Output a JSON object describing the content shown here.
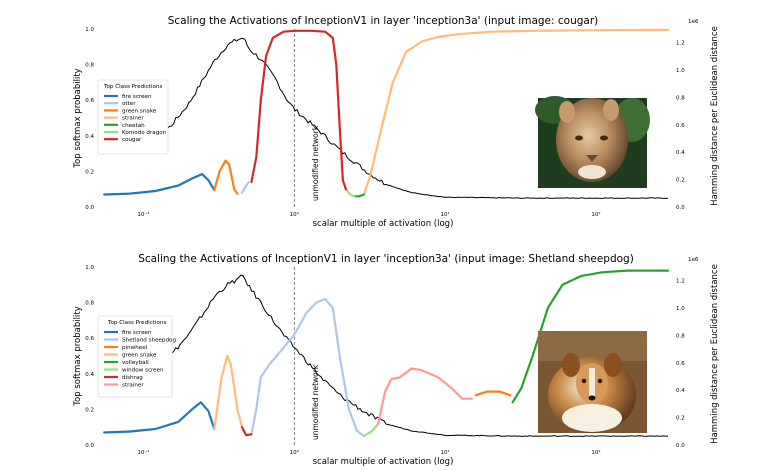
{
  "chart_data": [
    {
      "type": "line",
      "title": "Scaling the Activations of InceptionV1 in layer 'inception3a' (input image: cougar)",
      "xlabel": "scalar multiple of activation (log)",
      "ylabel": "Top softmax probability",
      "y2label": "Hamming distance per Euclidean distance",
      "y2_offset_label": "1e6",
      "x_scale": "log",
      "xlim": [
        0.05,
        300
      ],
      "ylim": [
        0,
        1.0
      ],
      "y2lim": [
        0,
        1.3
      ],
      "xticks": [
        {
          "v": 0.1,
          "label": "10⁻¹"
        },
        {
          "v": 1,
          "label": "10⁰"
        },
        {
          "v": 10,
          "label": "10¹"
        },
        {
          "v": 100,
          "label": "10²"
        }
      ],
      "yticks": [
        "0.0",
        "0.2",
        "0.4",
        "0.6",
        "0.8",
        "1.0"
      ],
      "y2ticks": [
        "0.0",
        "0.2",
        "0.4",
        "0.6",
        "0.8",
        "1.0",
        "1.2"
      ],
      "annotation": {
        "x": 1,
        "text": "unmodified network"
      },
      "legend": {
        "title": "Top Class Predictions",
        "placement": "center-left"
      },
      "image_label": "cougar",
      "series": [
        {
          "name": "fire screen",
          "color": "#1f77b4",
          "points": [
            [
              0.055,
              0.07
            ],
            [
              0.08,
              0.075
            ],
            [
              0.12,
              0.09
            ],
            [
              0.17,
              0.12
            ],
            [
              0.21,
              0.16
            ],
            [
              0.245,
              0.185
            ],
            [
              0.27,
              0.15
            ],
            [
              0.295,
              0.095
            ]
          ]
        },
        {
          "name": "otter",
          "color": "#aec7e8",
          "points": [
            [
              0.45,
              0.08
            ],
            [
              0.48,
              0.12
            ],
            [
              0.5,
              0.14
            ]
          ]
        },
        {
          "name": "green snake",
          "color": "#ff7f0e",
          "points": [
            [
              0.295,
              0.095
            ],
            [
              0.32,
              0.2
            ],
            [
              0.35,
              0.26
            ],
            [
              0.37,
              0.24
            ],
            [
              0.4,
              0.1
            ],
            [
              0.42,
              0.075
            ]
          ]
        },
        {
          "name": "strainer",
          "color": "#ffbb78",
          "points": [
            [
              2.9,
              0.07
            ],
            [
              3.2,
              0.18
            ],
            [
              3.8,
              0.45
            ],
            [
              4.5,
              0.7
            ],
            [
              5.5,
              0.87
            ],
            [
              7,
              0.93
            ],
            [
              9,
              0.955
            ],
            [
              12,
              0.97
            ],
            [
              20,
              0.985
            ],
            [
              40,
              0.99
            ],
            [
              100,
              0.993
            ],
            [
              300,
              0.995
            ]
          ]
        },
        {
          "name": "cheetah",
          "color": "#2ca02c",
          "points": [
            [
              2.5,
              0.06
            ],
            [
              2.7,
              0.06
            ],
            [
              2.9,
              0.07
            ]
          ]
        },
        {
          "name": "Komodo dragon",
          "color": "#98df8a",
          "points": [
            [
              2.2,
              0.1
            ],
            [
              2.35,
              0.07
            ],
            [
              2.5,
              0.06
            ]
          ]
        },
        {
          "name": "cougar",
          "color": "#d62728",
          "points": [
            [
              0.52,
              0.14
            ],
            [
              0.56,
              0.28
            ],
            [
              0.6,
              0.6
            ],
            [
              0.65,
              0.85
            ],
            [
              0.72,
              0.95
            ],
            [
              0.85,
              0.985
            ],
            [
              1,
              0.99
            ],
            [
              1.3,
              0.99
            ],
            [
              1.6,
              0.985
            ],
            [
              1.8,
              0.95
            ],
            [
              1.9,
              0.8
            ],
            [
              2.0,
              0.45
            ],
            [
              2.1,
              0.15
            ],
            [
              2.2,
              0.1
            ]
          ]
        }
      ],
      "distance_curve": {
        "color": "#000000",
        "peak_x": 0.44,
        "peak_y": 0.95,
        "points": [
          [
            0.055,
            0.31
          ],
          [
            0.08,
            0.34
          ],
          [
            0.1,
            0.36
          ],
          [
            0.15,
            0.45
          ],
          [
            0.2,
            0.58
          ],
          [
            0.25,
            0.72
          ],
          [
            0.3,
            0.83
          ],
          [
            0.36,
            0.91
          ],
          [
            0.42,
            0.94
          ],
          [
            0.46,
            0.95
          ],
          [
            0.5,
            0.89
          ],
          [
            0.6,
            0.83
          ],
          [
            0.75,
            0.72
          ],
          [
            0.9,
            0.6
          ],
          [
            1,
            0.55
          ],
          [
            1.5,
            0.42
          ],
          [
            2,
            0.32
          ],
          [
            3,
            0.2
          ],
          [
            4,
            0.13
          ],
          [
            6,
            0.08
          ],
          [
            10,
            0.055
          ],
          [
            30,
            0.05
          ],
          [
            100,
            0.05
          ],
          [
            300,
            0.05
          ]
        ]
      }
    },
    {
      "type": "line",
      "title": "Scaling the Activations of InceptionV1 in layer 'inception3a' (input image: Shetland sheepdog)",
      "xlabel": "scalar multiple of activation (log)",
      "ylabel": "Top softmax probability",
      "y2label": "Hamming distance per Euclidean distance",
      "y2_offset_label": "1e6",
      "x_scale": "log",
      "xlim": [
        0.05,
        300
      ],
      "ylim": [
        0,
        1.0
      ],
      "y2lim": [
        0,
        1.3
      ],
      "xticks": [
        {
          "v": 0.1,
          "label": "10⁻¹"
        },
        {
          "v": 1,
          "label": "10⁰"
        },
        {
          "v": 10,
          "label": "10¹"
        },
        {
          "v": 100,
          "label": "10²"
        }
      ],
      "yticks": [
        "0.0",
        "0.2",
        "0.4",
        "0.6",
        "0.8",
        "1.0"
      ],
      "y2ticks": [
        "0.0",
        "0.2",
        "0.4",
        "0.6",
        "0.8",
        "1.0",
        "1.2"
      ],
      "annotation": {
        "x": 1,
        "text": "unmodified network"
      },
      "legend": {
        "title": "Top Class Predictions",
        "placement": "center-left"
      },
      "image_label": "Shetland sheepdog",
      "series": [
        {
          "name": "fire screen",
          "color": "#1f77b4",
          "points": [
            [
              0.055,
              0.07
            ],
            [
              0.08,
              0.075
            ],
            [
              0.12,
              0.09
            ],
            [
              0.17,
              0.13
            ],
            [
              0.21,
              0.2
            ],
            [
              0.24,
              0.24
            ],
            [
              0.27,
              0.19
            ],
            [
              0.295,
              0.09
            ]
          ]
        },
        {
          "name": "Shetland sheepdog",
          "color": "#aec7e8",
          "points": [
            [
              0.52,
              0.06
            ],
            [
              0.56,
              0.2
            ],
            [
              0.6,
              0.38
            ],
            [
              0.68,
              0.45
            ],
            [
              0.8,
              0.52
            ],
            [
              1,
              0.62
            ],
            [
              1.2,
              0.74
            ],
            [
              1.4,
              0.8
            ],
            [
              1.6,
              0.82
            ],
            [
              1.8,
              0.77
            ],
            [
              2.0,
              0.5
            ],
            [
              2.3,
              0.2
            ],
            [
              2.6,
              0.08
            ],
            [
              2.9,
              0.05
            ]
          ]
        },
        {
          "name": "pinwheel",
          "color": "#ff7f0e",
          "points": [
            [
              16,
              0.28
            ],
            [
              19,
              0.3
            ],
            [
              23,
              0.3
            ],
            [
              27,
              0.28
            ]
          ]
        },
        {
          "name": "green snake",
          "color": "#ffbb78",
          "points": [
            [
              0.295,
              0.09
            ],
            [
              0.33,
              0.38
            ],
            [
              0.36,
              0.5
            ],
            [
              0.38,
              0.45
            ],
            [
              0.42,
              0.2
            ],
            [
              0.45,
              0.1
            ]
          ]
        },
        {
          "name": "volleyball",
          "color": "#2ca02c",
          "points": [
            [
              28,
              0.24
            ],
            [
              32,
              0.32
            ],
            [
              38,
              0.5
            ],
            [
              48,
              0.77
            ],
            [
              60,
              0.9
            ],
            [
              80,
              0.95
            ],
            [
              110,
              0.97
            ],
            [
              160,
              0.98
            ],
            [
              300,
              0.98
            ]
          ]
        },
        {
          "name": "window screen",
          "color": "#98df8a",
          "points": [
            [
              2.9,
              0.05
            ],
            [
              3.3,
              0.08
            ],
            [
              3.6,
              0.12
            ]
          ]
        },
        {
          "name": "dishrag",
          "color": "#d62728",
          "points": [
            [
              0.45,
              0.1
            ],
            [
              0.48,
              0.055
            ],
            [
              0.52,
              0.06
            ]
          ]
        },
        {
          "name": "strainer",
          "color": "#ff9896",
          "points": [
            [
              3.6,
              0.12
            ],
            [
              4,
              0.3
            ],
            [
              4.4,
              0.37
            ],
            [
              5,
              0.38
            ],
            [
              6,
              0.43
            ],
            [
              7,
              0.42
            ],
            [
              9,
              0.38
            ],
            [
              11,
              0.32
            ],
            [
              13,
              0.26
            ],
            [
              15,
              0.26
            ]
          ]
        }
      ],
      "distance_curve": {
        "color": "#000000",
        "peak_x": 0.45,
        "peak_y": 0.95,
        "points": [
          [
            0.055,
            0.31
          ],
          [
            0.08,
            0.35
          ],
          [
            0.1,
            0.37
          ],
          [
            0.15,
            0.5
          ],
          [
            0.2,
            0.62
          ],
          [
            0.25,
            0.74
          ],
          [
            0.3,
            0.84
          ],
          [
            0.36,
            0.9
          ],
          [
            0.42,
            0.93
          ],
          [
            0.46,
            0.95
          ],
          [
            0.5,
            0.89
          ],
          [
            0.6,
            0.8
          ],
          [
            0.75,
            0.68
          ],
          [
            0.9,
            0.59
          ],
          [
            1,
            0.55
          ],
          [
            1.5,
            0.38
          ],
          [
            2,
            0.28
          ],
          [
            3,
            0.18
          ],
          [
            4,
            0.12
          ],
          [
            6,
            0.08
          ],
          [
            10,
            0.055
          ],
          [
            30,
            0.05
          ],
          [
            100,
            0.05
          ],
          [
            300,
            0.05
          ]
        ]
      }
    }
  ]
}
